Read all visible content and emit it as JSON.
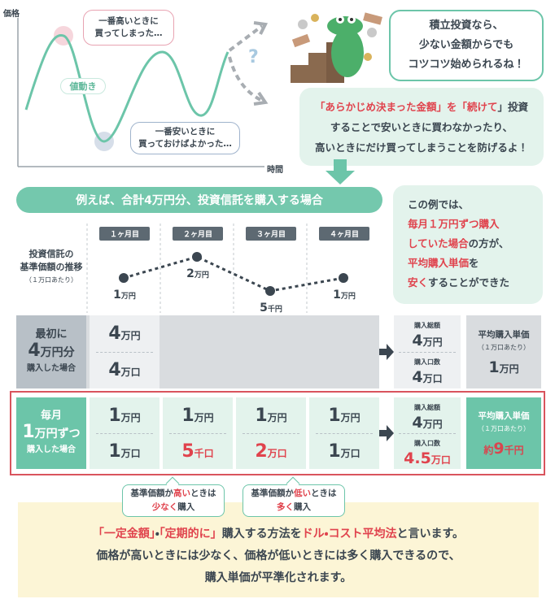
{
  "chart": {
    "y_axis_label": "価格",
    "x_axis_label": "時間",
    "high_note": [
      "一番高いときに",
      "買ってしまった…"
    ],
    "price_move": "値動き",
    "low_note": [
      "一番安いときに",
      "買っておけばよかった…"
    ],
    "question": "?"
  },
  "speech": [
    "積立投資なら、",
    "少ない金額からでも",
    "コツコツ始められるね！"
  ],
  "tip": [
    [
      "「",
      "あらかじめ決まった金額",
      "」を「",
      "続けて",
      "」投資"
    ],
    [
      "することで安いときに買わなかったり、"
    ],
    [
      "高いときにだけ買ってしまうことを防げるよ！"
    ]
  ],
  "banner": "例えば、合計4万円分、投資信託を購入する場合",
  "example": [
    [
      "この例では、"
    ],
    [
      "毎月１万円ずつ購入"
    ],
    [
      "していた場合",
      "の方が、"
    ],
    [
      "平均購入単価",
      "を"
    ],
    [
      "安く",
      "することができた"
    ]
  ],
  "months": [
    "１ヶ月目",
    "２ヶ月目",
    "３ヶ月目",
    "４ヶ月目"
  ],
  "price_row": {
    "label": [
      "投資信託の",
      "基準価額の推移"
    ],
    "note": "（１万口あたり）",
    "prices": [
      {
        "num": "1",
        "unit": "万円"
      },
      {
        "num": "2",
        "unit": "万円"
      },
      {
        "num": "5",
        "unit": "千円"
      },
      {
        "num": "1",
        "unit": "万円"
      }
    ]
  },
  "lump_sum": {
    "label": {
      "line1": "最初に",
      "num": "4",
      "unit": "万円分",
      "line3": "購入した場合"
    },
    "amount": {
      "num": "4",
      "unit": "万円"
    },
    "units": {
      "num": "4",
      "unit": "万口"
    },
    "total_label": "購入総額",
    "total": {
      "num": "4",
      "unit": "万円"
    },
    "count_label": "購入口数",
    "count": {
      "num": "4",
      "unit": "万口"
    },
    "avg_label": "平均購入単価",
    "avg_note": "（１万口あたり）",
    "avg": {
      "num": "1",
      "unit": "万円"
    }
  },
  "monthly": {
    "label": {
      "line1": "毎月",
      "num": "1",
      "unit": "万円ずつ",
      "line3": "購入した場合"
    },
    "amounts": [
      {
        "num": "1",
        "unit": "万円"
      },
      {
        "num": "1",
        "unit": "万円"
      },
      {
        "num": "1",
        "unit": "万円"
      },
      {
        "num": "1",
        "unit": "万円"
      }
    ],
    "units": [
      {
        "num": "1",
        "unit": "万口"
      },
      {
        "num": "5",
        "unit": "千口"
      },
      {
        "num": "2",
        "unit": "万口"
      },
      {
        "num": "1",
        "unit": "万口"
      }
    ],
    "total_label": "購入総額",
    "total": {
      "num": "4",
      "unit": "万円"
    },
    "count_label": "購入口数",
    "count": {
      "num": "4.5",
      "unit": "万口"
    },
    "avg_label": "平均購入単価",
    "avg_note": "（１万口あたり）",
    "avg": {
      "prefix": "約",
      "num": "9",
      "unit": "千円"
    }
  },
  "callouts": [
    [
      [
        "基準価額が",
        "高い",
        "ときは"
      ],
      [
        "少なく",
        "購入"
      ]
    ],
    [
      [
        "基準価額が",
        "低い",
        "ときは"
      ],
      [
        "多く",
        "購入"
      ]
    ]
  ],
  "summary": [
    [
      "「一定金額」",
      "・",
      "「定期的に」",
      "購入する方法を",
      "ドル・コスト平均法",
      "と言います。"
    ],
    [
      "価格が高いときには少なく、価格が低いときには多く購入できるので、"
    ],
    [
      "購入単価が平準化されます。"
    ]
  ]
}
